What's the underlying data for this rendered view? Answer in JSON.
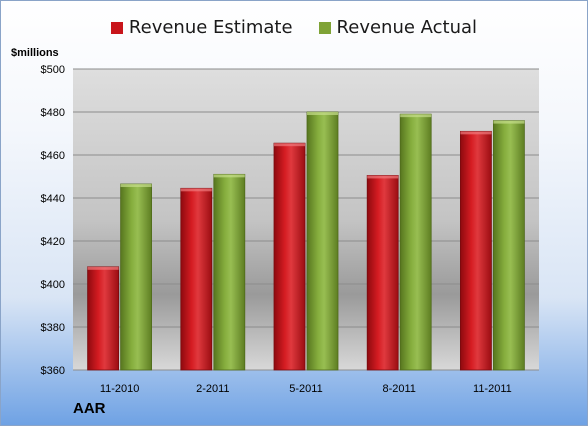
{
  "chart_data": {
    "type": "bar",
    "categories": [
      "11-2010",
      "2-2011",
      "5-2011",
      "8-2011",
      "11-2011"
    ],
    "series": [
      {
        "name": "Revenue Estimate",
        "values": [
          408,
          444.5,
          465.5,
          450.5,
          471
        ],
        "color": "#c8151b"
      },
      {
        "name": "Revenue Actual",
        "values": [
          446.5,
          451,
          480,
          479,
          476
        ],
        "color": "#7fa336"
      }
    ],
    "ylim": [
      360,
      500
    ],
    "yticks": [
      "$360",
      "$380",
      "$400",
      "$420",
      "$440",
      "$460",
      "$480",
      "$500"
    ],
    "ylabel": "$millions",
    "legend": "top",
    "grid": true,
    "company": "AAR"
  }
}
